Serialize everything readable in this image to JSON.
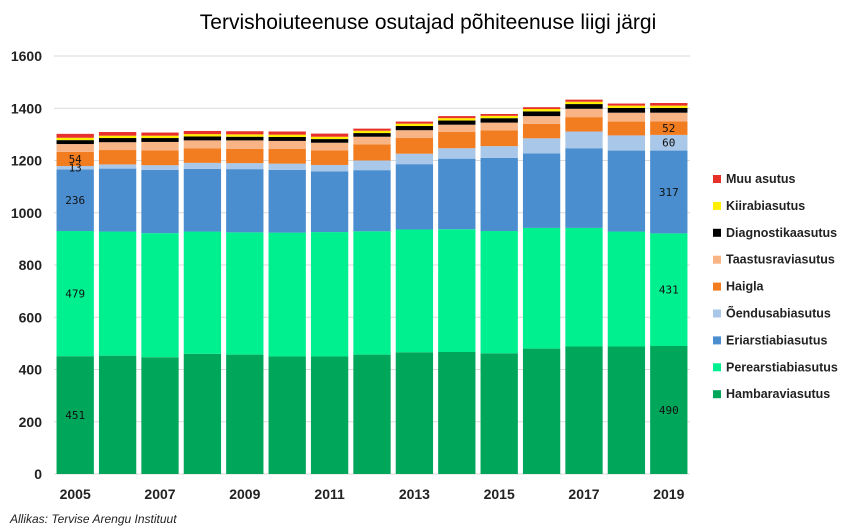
{
  "chart_data": {
    "type": "bar",
    "stacked": true,
    "title": "Tervishoiuteenuse osutajad põhiteenuse liigi järgi",
    "xlabel": "",
    "ylabel": "",
    "ylim": [
      0,
      1600
    ],
    "yticks": [
      0,
      200,
      400,
      600,
      800,
      1000,
      1200,
      1400,
      1600
    ],
    "grid": true,
    "legend_position": "right",
    "categories": [
      "2005",
      "2006",
      "2007",
      "2008",
      "2009",
      "2010",
      "2011",
      "2012",
      "2013",
      "2014",
      "2015",
      "2016",
      "2017",
      "2018",
      "2019"
    ],
    "xtick_labels": [
      "2005",
      "2007",
      "2009",
      "2011",
      "2013",
      "2015",
      "2017",
      "2019"
    ],
    "series": [
      {
        "name": "Hambaraviasutus",
        "color": "#00a65a",
        "values": [
          451,
          453,
          447,
          460,
          457,
          450,
          450,
          457,
          466,
          467,
          462,
          480,
          488,
          488,
          490
        ]
      },
      {
        "name": "Perearstiabiasutus",
        "color": "#00f090",
        "values": [
          479,
          475,
          475,
          468,
          468,
          474,
          476,
          472,
          470,
          470,
          468,
          462,
          454,
          440,
          431
        ]
      },
      {
        "name": "Eriarstiabiasutus",
        "color": "#4a8ed0",
        "values": [
          236,
          241,
          242,
          240,
          242,
          240,
          232,
          234,
          250,
          270,
          280,
          285,
          305,
          310,
          317
        ]
      },
      {
        "name": "Õendusabiasutus",
        "color": "#a9c7e8",
        "values": [
          13,
          16,
          18,
          23,
          23,
          24,
          25,
          37,
          40,
          40,
          45,
          58,
          64,
          58,
          60
        ]
      },
      {
        "name": "Haigla",
        "color": "#f27c20",
        "values": [
          54,
          55,
          57,
          55,
          55,
          57,
          56,
          62,
          60,
          62,
          60,
          55,
          55,
          53,
          52
        ]
      },
      {
        "name": "Taastusraviasutus",
        "color": "#f9b486",
        "values": [
          30,
          30,
          32,
          31,
          32,
          30,
          29,
          29,
          30,
          28,
          30,
          30,
          32,
          34,
          33
        ]
      },
      {
        "name": "Diagnostikaasutus",
        "color": "#000000",
        "values": [
          15,
          16,
          15,
          15,
          14,
          15,
          14,
          14,
          16,
          16,
          17,
          18,
          18,
          18,
          18
        ]
      },
      {
        "name": "Kiirabiasutus",
        "color": "#ffee00",
        "values": [
          9,
          9,
          9,
          9,
          9,
          9,
          9,
          9,
          9,
          9,
          9,
          9,
          9,
          9,
          9
        ]
      },
      {
        "name": "Muu asutus",
        "color": "#e8302a",
        "values": [
          15,
          14,
          12,
          12,
          12,
          12,
          12,
          8,
          8,
          8,
          7,
          7,
          8,
          8,
          10
        ]
      }
    ],
    "data_labels": [
      {
        "category": "2005",
        "series": "Hambaraviasutus",
        "text": "451"
      },
      {
        "category": "2005",
        "series": "Perearstiabiasutus",
        "text": "479"
      },
      {
        "category": "2005",
        "series": "Eriarstiabiasutus",
        "text": "236"
      },
      {
        "category": "2005",
        "series": "Õendusabiasutus",
        "text": "13"
      },
      {
        "category": "2005",
        "series": "Haigla",
        "text": "54"
      },
      {
        "category": "2019",
        "series": "Hambaraviasutus",
        "text": "490"
      },
      {
        "category": "2019",
        "series": "Perearstiabiasutus",
        "text": "431"
      },
      {
        "category": "2019",
        "series": "Eriarstiabiasutus",
        "text": "317"
      },
      {
        "category": "2019",
        "series": "Õendusabiasutus",
        "text": "60"
      },
      {
        "category": "2019",
        "series": "Haigla",
        "text": "52"
      }
    ],
    "legend_order": [
      "Muu asutus",
      "Kiirabiasutus",
      "Diagnostikaasutus",
      "Taastusraviasutus",
      "Haigla",
      "Õendusabiasutus",
      "Eriarstiabiasutus",
      "Perearstiabiasutus",
      "Hambaraviasutus"
    ]
  },
  "source": "Allikas: Tervise Arengu Instituut"
}
